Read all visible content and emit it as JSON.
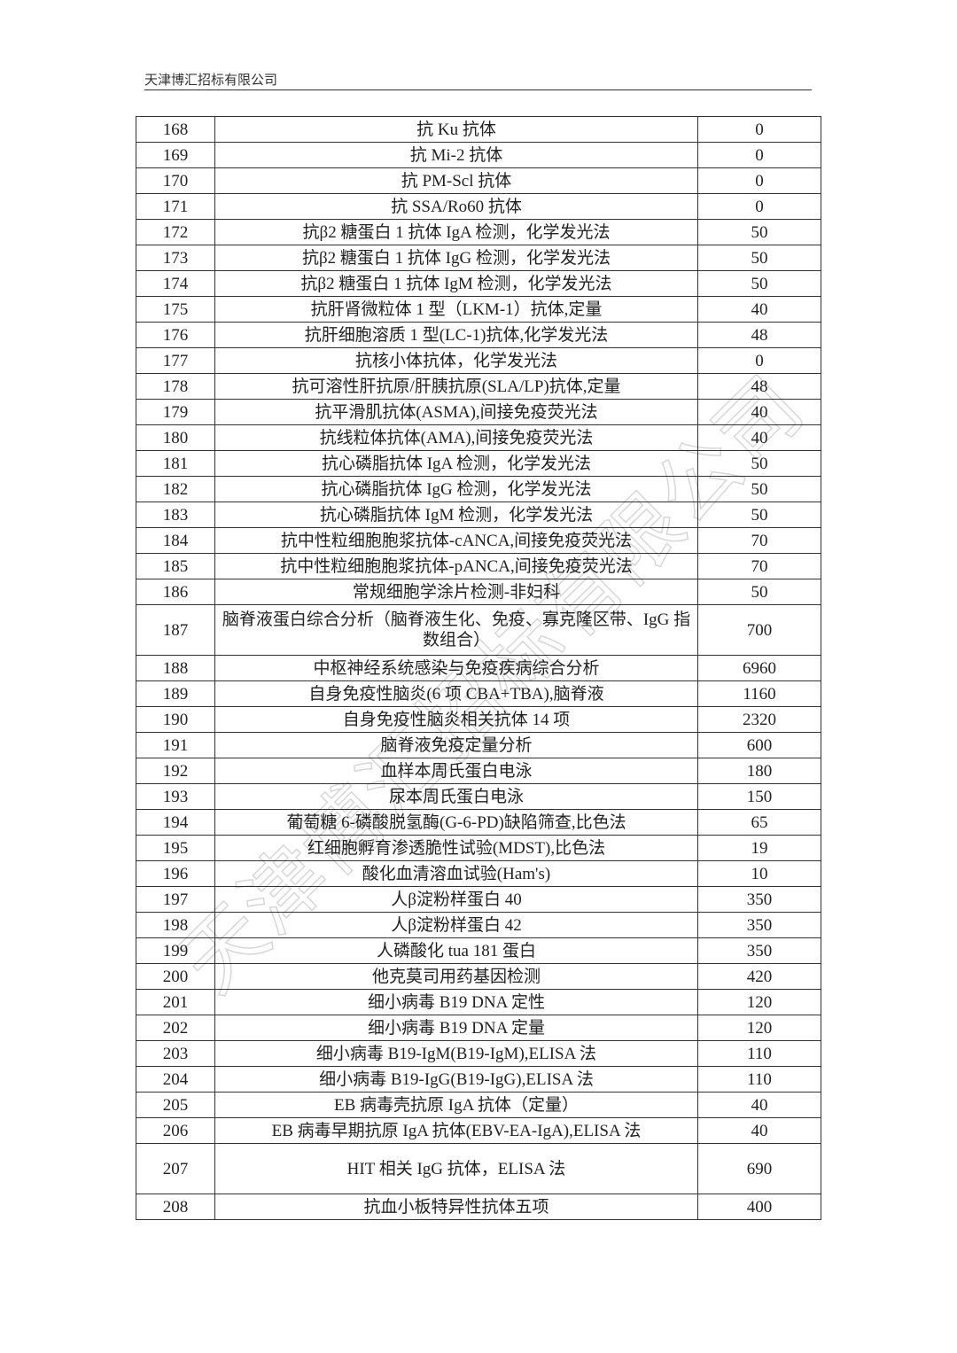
{
  "header": {
    "company": "天津博汇招标有限公司"
  },
  "watermark": "天津博汇招标有限公司",
  "table": {
    "rows": [
      [
        "168",
        "抗 Ku 抗体",
        "0"
      ],
      [
        "169",
        "抗 Mi-2 抗体",
        "0"
      ],
      [
        "170",
        "抗 PM-Scl 抗体",
        "0"
      ],
      [
        "171",
        "抗 SSA/Ro60 抗体",
        "0"
      ],
      [
        "172",
        "抗β2 糖蛋白 1 抗体 IgA 检测，化学发光法",
        "50"
      ],
      [
        "173",
        "抗β2 糖蛋白 1 抗体 IgG 检测，化学发光法",
        "50"
      ],
      [
        "174",
        "抗β2 糖蛋白 1 抗体 IgM 检测，化学发光法",
        "50"
      ],
      [
        "175",
        "抗肝肾微粒体 1 型（LKM-1）抗体,定量",
        "40"
      ],
      [
        "176",
        "抗肝细胞溶质 1 型(LC-1)抗体,化学发光法",
        "48"
      ],
      [
        "177",
        "抗核小体抗体，化学发光法",
        "0"
      ],
      [
        "178",
        "抗可溶性肝抗原/肝胰抗原(SLA/LP)抗体,定量",
        "48"
      ],
      [
        "179",
        "抗平滑肌抗体(ASMA),间接免疫荧光法",
        "40"
      ],
      [
        "180",
        "抗线粒体抗体(AMA),间接免疫荧光法",
        "40"
      ],
      [
        "181",
        "抗心磷脂抗体 IgA 检测，化学发光法",
        "50"
      ],
      [
        "182",
        "抗心磷脂抗体 IgG 检测，化学发光法",
        "50"
      ],
      [
        "183",
        "抗心磷脂抗体 IgM 检测，化学发光法",
        "50"
      ],
      [
        "184",
        "抗中性粒细胞胞浆抗体-cANCA,间接免疫荧光法",
        "70"
      ],
      [
        "185",
        "抗中性粒细胞胞浆抗体-pANCA,间接免疫荧光法",
        "70"
      ],
      [
        "186",
        "常规细胞学涂片检测-非妇科",
        "50"
      ],
      [
        "187",
        "脑脊液蛋白综合分析（脑脊液生化、免疫、寡克隆区带、IgG 指数组合）",
        "700"
      ],
      [
        "188",
        "中枢神经系统感染与免疫疾病综合分析",
        "6960"
      ],
      [
        "189",
        "自身免疫性脑炎(6 项 CBA+TBA),脑脊液",
        "1160"
      ],
      [
        "190",
        "自身免疫性脑炎相关抗体 14 项",
        "2320"
      ],
      [
        "191",
        "脑脊液免疫定量分析",
        "600"
      ],
      [
        "192",
        "血样本周氏蛋白电泳",
        "180"
      ],
      [
        "193",
        "尿本周氏蛋白电泳",
        "150"
      ],
      [
        "194",
        "葡萄糖 6-磷酸脱氢酶(G-6-PD)缺陷筛查,比色法",
        "65"
      ],
      [
        "195",
        "红细胞孵育渗透脆性试验(MDST),比色法",
        "19"
      ],
      [
        "196",
        "酸化血清溶血试验(Ham's)",
        "10"
      ],
      [
        "197",
        "人β淀粉样蛋白 40",
        "350"
      ],
      [
        "198",
        "人β淀粉样蛋白 42",
        "350"
      ],
      [
        "199",
        "人磷酸化 tua 181 蛋白",
        "350"
      ],
      [
        "200",
        "他克莫司用药基因检测",
        "420"
      ],
      [
        "201",
        "细小病毒 B19 DNA 定性",
        "120"
      ],
      [
        "202",
        "细小病毒 B19 DNA 定量",
        "120"
      ],
      [
        "203",
        "细小病毒 B19-IgM(B19-IgM),ELISA 法",
        "110"
      ],
      [
        "204",
        "细小病毒 B19-IgG(B19-IgG),ELISA 法",
        "110"
      ],
      [
        "205",
        "EB 病毒壳抗原 IgA 抗体（定量）",
        "40"
      ],
      [
        "206",
        "EB 病毒早期抗原 IgA 抗体(EBV-EA-IgA),ELISA 法",
        "40"
      ],
      [
        "207",
        "HIT 相关 IgG 抗体，ELISA 法",
        "690"
      ],
      [
        "208",
        "抗血小板特异性抗体五项",
        "400"
      ]
    ]
  }
}
